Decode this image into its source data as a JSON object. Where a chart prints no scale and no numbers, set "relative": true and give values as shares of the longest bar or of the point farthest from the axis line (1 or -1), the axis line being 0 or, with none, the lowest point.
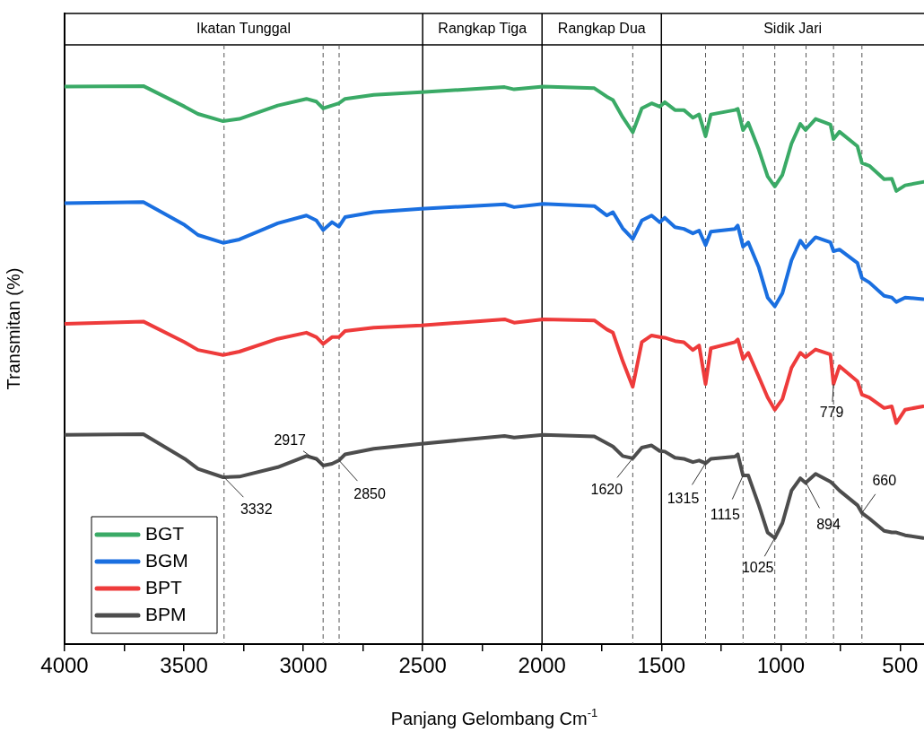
{
  "chart_data": {
    "type": "line",
    "xlabel": "Panjang Gelombang Cm$^{-1}$",
    "ylabel": "Transmitan (%)",
    "relative": true,
    "x": [
      4000,
      3670,
      3497,
      3441,
      3336,
      3268,
      3107,
      2987,
      2945,
      2917,
      2880,
      2851,
      2825,
      2705,
      2506,
      2157,
      2117,
      1995,
      1781,
      1729,
      1703,
      1662,
      1620,
      1582,
      1541,
      1507,
      1486,
      1443,
      1406,
      1368,
      1342,
      1315,
      1293,
      1192,
      1180,
      1158,
      1136,
      1092,
      1055,
      1025,
      993,
      955,
      918,
      896,
      854,
      792,
      779,
      754,
      679,
      660,
      629,
      567,
      535,
      516,
      479,
      404
    ],
    "series": [
      {
        "name": "BGT",
        "color": "#3aaa66",
        "values": [
          0.999,
          1.0,
          0.963,
          0.95,
          0.937,
          0.941,
          0.965,
          0.977,
          0.972,
          0.96,
          0.965,
          0.969,
          0.977,
          0.984,
          0.989,
          0.998,
          0.994,
          0.999,
          0.996,
          0.981,
          0.975,
          0.944,
          0.917,
          0.96,
          0.969,
          0.963,
          0.971,
          0.957,
          0.957,
          0.943,
          0.949,
          0.91,
          0.949,
          0.957,
          0.959,
          0.921,
          0.934,
          0.886,
          0.838,
          0.82,
          0.841,
          0.897,
          0.932,
          0.921,
          0.941,
          0.931,
          0.905,
          0.918,
          0.892,
          0.862,
          0.857,
          0.833,
          0.834,
          0.812,
          0.822,
          0.828
        ]
      },
      {
        "name": "BGM",
        "color": "#1a6fe0",
        "values": [
          0.79,
          0.792,
          0.751,
          0.733,
          0.719,
          0.725,
          0.754,
          0.768,
          0.759,
          0.742,
          0.756,
          0.748,
          0.765,
          0.774,
          0.78,
          0.788,
          0.783,
          0.789,
          0.785,
          0.768,
          0.774,
          0.745,
          0.726,
          0.759,
          0.768,
          0.756,
          0.764,
          0.747,
          0.744,
          0.736,
          0.741,
          0.715,
          0.739,
          0.744,
          0.75,
          0.712,
          0.72,
          0.675,
          0.621,
          0.605,
          0.629,
          0.688,
          0.723,
          0.71,
          0.729,
          0.72,
          0.704,
          0.707,
          0.683,
          0.656,
          0.648,
          0.624,
          0.621,
          0.613,
          0.621,
          0.618
        ]
      },
      {
        "name": "BPT",
        "color": "#ee3b3b",
        "values": [
          0.574,
          0.578,
          0.541,
          0.527,
          0.518,
          0.524,
          0.547,
          0.558,
          0.55,
          0.538,
          0.55,
          0.55,
          0.561,
          0.567,
          0.571,
          0.582,
          0.576,
          0.582,
          0.58,
          0.564,
          0.558,
          0.507,
          0.461,
          0.541,
          0.553,
          0.55,
          0.549,
          0.543,
          0.541,
          0.527,
          0.535,
          0.466,
          0.53,
          0.541,
          0.546,
          0.511,
          0.522,
          0.479,
          0.442,
          0.42,
          0.439,
          0.495,
          0.522,
          0.514,
          0.528,
          0.519,
          0.466,
          0.498,
          0.471,
          0.447,
          0.442,
          0.423,
          0.426,
          0.396,
          0.42,
          0.426
        ]
      },
      {
        "name": "BPM",
        "color": "#4d4d4d",
        "values": [
          0.375,
          0.376,
          0.332,
          0.314,
          0.299,
          0.3,
          0.317,
          0.337,
          0.332,
          0.32,
          0.323,
          0.329,
          0.34,
          0.35,
          0.359,
          0.373,
          0.37,
          0.375,
          0.372,
          0.36,
          0.354,
          0.337,
          0.333,
          0.352,
          0.356,
          0.346,
          0.345,
          0.334,
          0.332,
          0.326,
          0.329,
          0.324,
          0.332,
          0.336,
          0.34,
          0.302,
          0.302,
          0.249,
          0.2,
          0.19,
          0.217,
          0.275,
          0.297,
          0.289,
          0.305,
          0.291,
          0.286,
          0.275,
          0.249,
          0.235,
          0.225,
          0.203,
          0.2,
          0.2,
          0.195,
          0.19
        ]
      }
    ],
    "xlim": [
      4000,
      400
    ],
    "xticks": [
      4000,
      {
        "value": 3750,
        "label": null
      },
      3500,
      {
        "value": 3250,
        "label": null
      },
      3000,
      {
        "value": 2750,
        "label": null
      },
      2500,
      {
        "value": 2250,
        "label": null
      },
      2000,
      {
        "value": 1750,
        "label": null
      },
      1500,
      {
        "value": 1250,
        "label": null
      },
      1000,
      {
        "value": 750,
        "label": null
      },
      500
    ],
    "grid": false,
    "legend": "bottom left",
    "marker": "none",
    "line_style": "solid",
    "ref_lines": [
      {
        "axis": "x",
        "value": 2500,
        "label": null,
        "color": "#000000",
        "line_style": "solid"
      },
      {
        "axis": "x",
        "value": 2000,
        "label": null,
        "color": "#000000",
        "line_style": "solid"
      },
      {
        "axis": "x",
        "value": 1500,
        "label": null,
        "color": "#000000",
        "line_style": "solid"
      },
      {
        "axis": "x",
        "value": 3332,
        "label": null,
        "color": "#555555",
        "line_style": "dashed"
      },
      {
        "axis": "x",
        "value": 2917,
        "label": null,
        "color": "#555555",
        "line_style": "dashed"
      },
      {
        "axis": "x",
        "value": 2850,
        "label": null,
        "color": "#555555",
        "line_style": "dashed"
      },
      {
        "axis": "x",
        "value": 1620,
        "label": null,
        "color": "#555555",
        "line_style": "dashed"
      },
      {
        "axis": "x",
        "value": 1315,
        "label": null,
        "color": "#555555",
        "line_style": "dashed"
      },
      {
        "axis": "x",
        "value": 1158,
        "label": null,
        "color": "#555555",
        "line_style": "dashed"
      },
      {
        "axis": "x",
        "value": 1025,
        "label": null,
        "color": "#555555",
        "line_style": "dashed"
      },
      {
        "axis": "x",
        "value": 894,
        "label": null,
        "color": "#555555",
        "line_style": "dashed"
      },
      {
        "axis": "x",
        "value": 779,
        "label": null,
        "color": "#555555",
        "line_style": "dashed"
      },
      {
        "axis": "x",
        "value": 660,
        "label": null,
        "color": "#555555",
        "line_style": "dashed"
      }
    ],
    "annotations": [
      "Ikatan Tunggal",
      "Rangkap Tiga",
      "Rangkap Dua",
      "Sidik Jari",
      {
        "text": "3332",
        "x": 3332,
        "y": 0.299
      },
      {
        "text": "2917",
        "x": 2917,
        "y": 0.32
      },
      {
        "text": "2850",
        "x": 2850,
        "y": 0.329
      },
      {
        "text": "1620",
        "x": 1620,
        "y": 0.333
      },
      {
        "text": "1315",
        "x": 1315,
        "y": 0.324
      },
      {
        "text": "1115",
        "x": 1158,
        "y": 0.302
      },
      {
        "text": "1025",
        "x": 1025,
        "y": 0.19
      },
      {
        "text": "894",
        "x": 894,
        "y": 0.289
      },
      {
        "text": "660",
        "x": 660,
        "y": 0.235
      },
      {
        "text": "779",
        "x": 779,
        "y": 0.466
      }
    ]
  }
}
